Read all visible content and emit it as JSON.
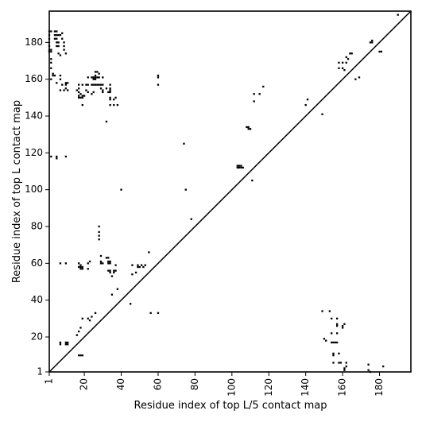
{
  "chart_data": {
    "type": "scatter",
    "xlabel": "Residue index of top L/5 contact map",
    "ylabel": "Residue index of top L contact map",
    "xlim": [
      1,
      197
    ],
    "ylim": [
      1,
      197
    ],
    "x_ticks": [
      1,
      20,
      40,
      60,
      80,
      100,
      120,
      140,
      160,
      180
    ],
    "y_ticks": [
      1,
      20,
      40,
      60,
      80,
      100,
      120,
      140,
      160,
      180
    ],
    "x_tick_labels": [
      "1",
      "20",
      "40",
      "60",
      "80",
      "100",
      "120",
      "140",
      "160",
      "180"
    ],
    "y_tick_labels": [
      "1",
      "20",
      "40",
      "60",
      "80",
      "100",
      "120",
      "140",
      "160",
      "180"
    ],
    "grid": false,
    "marker": "square",
    "point_color": "#000000",
    "diagonal": {
      "from": [
        1,
        1
      ],
      "to": [
        197,
        197
      ]
    },
    "points_upper_top_L": [
      [
        1,
        186
      ],
      [
        2,
        186
      ],
      [
        4,
        186
      ],
      [
        5,
        186
      ],
      [
        1,
        184
      ],
      [
        4,
        184
      ],
      [
        5,
        184
      ],
      [
        6,
        184
      ],
      [
        1,
        182
      ],
      [
        4,
        182
      ],
      [
        5,
        182
      ],
      [
        7,
        184
      ],
      [
        1,
        180
      ],
      [
        5,
        180
      ],
      [
        6,
        180
      ],
      [
        1,
        178
      ],
      [
        5,
        178
      ],
      [
        6,
        178
      ],
      [
        1,
        176
      ],
      [
        2,
        176
      ],
      [
        1,
        175
      ],
      [
        2,
        175
      ],
      [
        6,
        174
      ],
      [
        7,
        173
      ],
      [
        8,
        185
      ],
      [
        8,
        182
      ],
      [
        9,
        180
      ],
      [
        9,
        178
      ],
      [
        9,
        176
      ],
      [
        10,
        174
      ],
      [
        2,
        171
      ],
      [
        2,
        169
      ],
      [
        2,
        166
      ],
      [
        3,
        163
      ],
      [
        4,
        162
      ],
      [
        3,
        162
      ],
      [
        2,
        160
      ],
      [
        5,
        158
      ],
      [
        7,
        162
      ],
      [
        7,
        160
      ],
      [
        8,
        157
      ],
      [
        10,
        157
      ],
      [
        10,
        155
      ],
      [
        10,
        158
      ],
      [
        11,
        158
      ],
      [
        7,
        154
      ],
      [
        9,
        154
      ],
      [
        11,
        154
      ],
      [
        17,
        157
      ],
      [
        19,
        157
      ],
      [
        17,
        155
      ],
      [
        17,
        153
      ],
      [
        18,
        152
      ],
      [
        17,
        151
      ],
      [
        19,
        151
      ],
      [
        20,
        151
      ],
      [
        17,
        150
      ],
      [
        18,
        150
      ],
      [
        19,
        150
      ],
      [
        16,
        154
      ],
      [
        19,
        146
      ],
      [
        21,
        157
      ],
      [
        22,
        157
      ],
      [
        21,
        154
      ],
      [
        22,
        153
      ],
      [
        22,
        161
      ],
      [
        24,
        161
      ],
      [
        25,
        161
      ],
      [
        26,
        161
      ],
      [
        27,
        161
      ],
      [
        28,
        161
      ],
      [
        25,
        160
      ],
      [
        26,
        160
      ],
      [
        24,
        157
      ],
      [
        25,
        157
      ],
      [
        26,
        157
      ],
      [
        27,
        157
      ],
      [
        28,
        157
      ],
      [
        29,
        157
      ],
      [
        30,
        157
      ],
      [
        27,
        164
      ],
      [
        26,
        164
      ],
      [
        28,
        163
      ],
      [
        26,
        162
      ],
      [
        30,
        161
      ],
      [
        29,
        155
      ],
      [
        30,
        154
      ],
      [
        30,
        153
      ],
      [
        32,
        155
      ],
      [
        34,
        157
      ],
      [
        34,
        155
      ],
      [
        34,
        154
      ],
      [
        33,
        153
      ],
      [
        34,
        153
      ],
      [
        25,
        153
      ],
      [
        24,
        152
      ],
      [
        34,
        150
      ],
      [
        34,
        149
      ],
      [
        37,
        150
      ],
      [
        36,
        149
      ],
      [
        34,
        146
      ],
      [
        36,
        146
      ],
      [
        38,
        146
      ],
      [
        32,
        137
      ],
      [
        60,
        162
      ],
      [
        60,
        161
      ],
      [
        60,
        157
      ],
      [
        2,
        118
      ],
      [
        5,
        118
      ],
      [
        5,
        117
      ],
      [
        10,
        118
      ],
      [
        7,
        17
      ],
      [
        7,
        16
      ],
      [
        10,
        17
      ],
      [
        11,
        16
      ],
      [
        10,
        16
      ],
      [
        11,
        17
      ],
      [
        18,
        10
      ],
      [
        17,
        10
      ],
      [
        19,
        10
      ],
      [
        16,
        21
      ],
      [
        17,
        23
      ],
      [
        18,
        25
      ],
      [
        19,
        30
      ],
      [
        22,
        30
      ],
      [
        23,
        29
      ],
      [
        24,
        31
      ],
      [
        26,
        33
      ],
      [
        7,
        60
      ],
      [
        10,
        60
      ],
      [
        17,
        60
      ],
      [
        18,
        59
      ],
      [
        17,
        58
      ],
      [
        18,
        58
      ],
      [
        19,
        58
      ],
      [
        19,
        57
      ],
      [
        18,
        57
      ],
      [
        22,
        57
      ],
      [
        22,
        60
      ],
      [
        23,
        61
      ],
      [
        28,
        73
      ],
      [
        28,
        75
      ],
      [
        28,
        77
      ],
      [
        28,
        80
      ],
      [
        29,
        64
      ],
      [
        29,
        61
      ],
      [
        29,
        60
      ],
      [
        30,
        60
      ],
      [
        32,
        63
      ],
      [
        33,
        63
      ],
      [
        33,
        61
      ],
      [
        34,
        61
      ],
      [
        33,
        60
      ],
      [
        34,
        60
      ],
      [
        37,
        59
      ],
      [
        33,
        56
      ],
      [
        34,
        56
      ],
      [
        34,
        55
      ],
      [
        36,
        56
      ],
      [
        37,
        56
      ],
      [
        36,
        55
      ],
      [
        35,
        53
      ],
      [
        35,
        43
      ],
      [
        38,
        46
      ],
      [
        40,
        100
      ],
      [
        45,
        38
      ],
      [
        46,
        54
      ],
      [
        48,
        55
      ],
      [
        46,
        59
      ],
      [
        49,
        59
      ],
      [
        49,
        58
      ],
      [
        50,
        58
      ],
      [
        51,
        59
      ],
      [
        52,
        58
      ],
      [
        53,
        59
      ],
      [
        55,
        66
      ],
      [
        56,
        33
      ],
      [
        60,
        33
      ],
      [
        74,
        125
      ],
      [
        75,
        100
      ],
      [
        78,
        84
      ],
      [
        103,
        113
      ],
      [
        104,
        113
      ],
      [
        105,
        113
      ],
      [
        103,
        112
      ],
      [
        104,
        112
      ],
      [
        105,
        112
      ],
      [
        106,
        112
      ],
      [
        108,
        134
      ],
      [
        109,
        134
      ],
      [
        110,
        133
      ],
      [
        109,
        133
      ],
      [
        111,
        105
      ],
      [
        112,
        152
      ],
      [
        112,
        148
      ],
      [
        115,
        152
      ],
      [
        117,
        156
      ],
      [
        140,
        146
      ],
      [
        141,
        149
      ],
      [
        149,
        141
      ],
      [
        158,
        169
      ],
      [
        158,
        166
      ],
      [
        160,
        166
      ],
      [
        160,
        169
      ],
      [
        161,
        165
      ],
      [
        162,
        169
      ],
      [
        162,
        172
      ],
      [
        163,
        171
      ],
      [
        164,
        174
      ],
      [
        165,
        174
      ],
      [
        167,
        160
      ],
      [
        169,
        161
      ],
      [
        175,
        180
      ],
      [
        176,
        180
      ],
      [
        176,
        181
      ],
      [
        180,
        175
      ],
      [
        181,
        175
      ],
      [
        190,
        195
      ]
    ],
    "points_lower_top_L5": [
      [
        149,
        34
      ],
      [
        150,
        19
      ],
      [
        151,
        18
      ],
      [
        153,
        34
      ],
      [
        154,
        22
      ],
      [
        154,
        30
      ],
      [
        154,
        17
      ],
      [
        155,
        17
      ],
      [
        156,
        17
      ],
      [
        155,
        11
      ],
      [
        155,
        10
      ],
      [
        155,
        6
      ],
      [
        157,
        30
      ],
      [
        157,
        27
      ],
      [
        157,
        26
      ],
      [
        157,
        22
      ],
      [
        157,
        17
      ],
      [
        158,
        11
      ],
      [
        158,
        6
      ],
      [
        159,
        6
      ],
      [
        160,
        26
      ],
      [
        161,
        27
      ],
      [
        160,
        25
      ],
      [
        161,
        3
      ],
      [
        161,
        2
      ],
      [
        162,
        4
      ],
      [
        162,
        6
      ],
      [
        174,
        5
      ],
      [
        174,
        2
      ],
      [
        175,
        1
      ],
      [
        182,
        4
      ]
    ]
  }
}
